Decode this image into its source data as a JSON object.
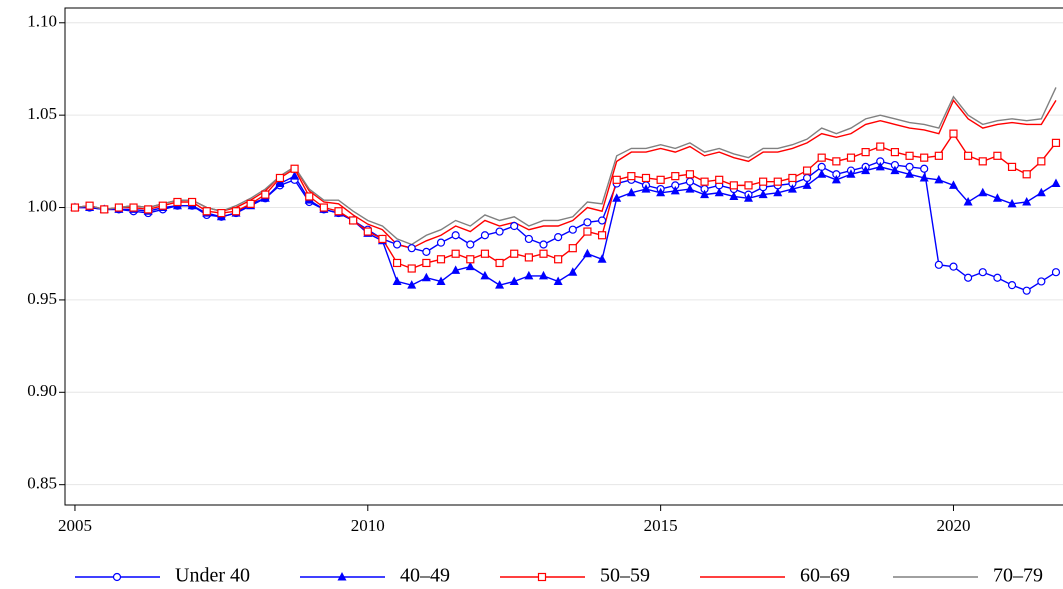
{
  "chart_data": {
    "type": "line",
    "x": [
      2005,
      2005.25,
      2005.5,
      2005.75,
      2006,
      2006.25,
      2006.5,
      2006.75,
      2007,
      2007.25,
      2007.5,
      2007.75,
      2008,
      2008.25,
      2008.5,
      2008.75,
      2009,
      2009.25,
      2009.5,
      2009.75,
      2010,
      2010.25,
      2010.5,
      2010.75,
      2011,
      2011.25,
      2011.5,
      2011.75,
      2012,
      2012.25,
      2012.5,
      2012.75,
      2013,
      2013.25,
      2013.5,
      2013.75,
      2014,
      2014.25,
      2014.5,
      2014.75,
      2015,
      2015.25,
      2015.5,
      2015.75,
      2016,
      2016.25,
      2016.5,
      2016.75,
      2017,
      2017.25,
      2017.5,
      2017.75,
      2018,
      2018.25,
      2018.5,
      2018.75,
      2019,
      2019.25,
      2019.5,
      2019.75,
      2020,
      2020.25,
      2020.5,
      2020.75,
      2021,
      2021.25,
      2021.5,
      2021.75
    ],
    "series": [
      {
        "name": "Under 40",
        "color": "#0000ff",
        "marker": "circle",
        "values": [
          1.0,
          1.0,
          0.999,
          0.999,
          0.998,
          0.997,
          0.999,
          1.001,
          1.001,
          0.996,
          0.995,
          0.997,
          1.002,
          1.005,
          1.012,
          1.015,
          1.003,
          0.999,
          0.997,
          0.993,
          0.988,
          0.983,
          0.98,
          0.978,
          0.976,
          0.981,
          0.985,
          0.98,
          0.985,
          0.987,
          0.99,
          0.983,
          0.98,
          0.984,
          0.988,
          0.992,
          0.993,
          1.013,
          1.015,
          1.012,
          1.01,
          1.012,
          1.014,
          1.01,
          1.012,
          1.01,
          1.007,
          1.011,
          1.012,
          1.013,
          1.016,
          1.022,
          1.018,
          1.02,
          1.022,
          1.025,
          1.023,
          1.022,
          1.021,
          0.969,
          0.968,
          0.962,
          0.965,
          0.962,
          0.958,
          0.955,
          0.96,
          0.965
        ]
      },
      {
        "name": "40–49",
        "color": "#0000ff",
        "marker": "triangle",
        "values": [
          1.0,
          1.0,
          0.999,
          0.999,
          0.999,
          0.998,
          1.0,
          1.001,
          1.001,
          0.997,
          0.995,
          0.997,
          1.001,
          1.005,
          1.013,
          1.017,
          1.004,
          0.999,
          0.997,
          0.993,
          0.986,
          0.982,
          0.96,
          0.958,
          0.962,
          0.96,
          0.966,
          0.968,
          0.963,
          0.958,
          0.96,
          0.963,
          0.963,
          0.96,
          0.965,
          0.975,
          0.972,
          1.005,
          1.008,
          1.01,
          1.008,
          1.009,
          1.01,
          1.007,
          1.008,
          1.006,
          1.005,
          1.007,
          1.008,
          1.01,
          1.012,
          1.018,
          1.015,
          1.018,
          1.02,
          1.022,
          1.02,
          1.018,
          1.016,
          1.015,
          1.012,
          1.003,
          1.008,
          1.005,
          1.002,
          1.003,
          1.008,
          1.013
        ]
      },
      {
        "name": "50–59",
        "color": "#ff0000",
        "marker": "square",
        "values": [
          1.0,
          1.001,
          0.999,
          1.0,
          1.0,
          0.999,
          1.001,
          1.003,
          1.003,
          0.998,
          0.997,
          0.998,
          1.002,
          1.007,
          1.016,
          1.021,
          1.006,
          1.0,
          0.998,
          0.993,
          0.987,
          0.983,
          0.97,
          0.967,
          0.97,
          0.972,
          0.975,
          0.972,
          0.975,
          0.97,
          0.975,
          0.973,
          0.975,
          0.972,
          0.978,
          0.987,
          0.985,
          1.015,
          1.017,
          1.016,
          1.015,
          1.017,
          1.018,
          1.014,
          1.015,
          1.012,
          1.012,
          1.014,
          1.014,
          1.016,
          1.02,
          1.027,
          1.025,
          1.027,
          1.03,
          1.033,
          1.03,
          1.028,
          1.027,
          1.028,
          1.04,
          1.028,
          1.025,
          1.028,
          1.022,
          1.018,
          1.025,
          1.035
        ]
      },
      {
        "name": "60–69",
        "color": "#ff0000",
        "marker": "none",
        "values": [
          1.0,
          1.001,
          0.999,
          1.0,
          1.001,
          1.0,
          1.002,
          1.004,
          1.004,
          1.0,
          0.998,
          1.0,
          1.004,
          1.009,
          1.017,
          1.022,
          1.009,
          1.003,
          1.002,
          0.996,
          0.991,
          0.988,
          0.98,
          0.978,
          0.982,
          0.985,
          0.99,
          0.987,
          0.993,
          0.99,
          0.992,
          0.988,
          0.99,
          0.99,
          0.993,
          1.0,
          0.998,
          1.025,
          1.03,
          1.03,
          1.032,
          1.03,
          1.033,
          1.028,
          1.03,
          1.027,
          1.025,
          1.03,
          1.03,
          1.032,
          1.035,
          1.04,
          1.038,
          1.04,
          1.045,
          1.047,
          1.045,
          1.043,
          1.042,
          1.04,
          1.058,
          1.048,
          1.043,
          1.045,
          1.046,
          1.045,
          1.045,
          1.058
        ]
      },
      {
        "name": "70–79",
        "color": "#808080",
        "marker": "none",
        "values": [
          1.0,
          1.001,
          0.999,
          1.0,
          1.001,
          1.0,
          1.002,
          1.004,
          1.004,
          1.0,
          0.998,
          1.001,
          1.005,
          1.01,
          1.017,
          1.022,
          1.01,
          1.004,
          1.004,
          0.998,
          0.993,
          0.99,
          0.983,
          0.98,
          0.985,
          0.988,
          0.993,
          0.99,
          0.996,
          0.993,
          0.995,
          0.99,
          0.993,
          0.993,
          0.995,
          1.003,
          1.002,
          1.028,
          1.032,
          1.032,
          1.034,
          1.032,
          1.035,
          1.03,
          1.032,
          1.029,
          1.027,
          1.032,
          1.032,
          1.034,
          1.037,
          1.043,
          1.04,
          1.043,
          1.048,
          1.05,
          1.048,
          1.046,
          1.045,
          1.043,
          1.06,
          1.05,
          1.045,
          1.047,
          1.048,
          1.047,
          1.048,
          1.065
        ]
      }
    ],
    "xlim": [
      2004.83,
      2021.87
    ],
    "xticks": [
      2005,
      2010,
      2015,
      2020
    ],
    "ylim": [
      0.839,
      1.108
    ],
    "yticks": [
      {
        "value": 1.1,
        "label": "1.10"
      },
      1.05,
      {
        "value": 1,
        "label": "1.00"
      },
      0.95,
      {
        "value": 0.9,
        "label": "0.90"
      },
      0.85
    ],
    "grid": true,
    "legend": "bottom"
  }
}
